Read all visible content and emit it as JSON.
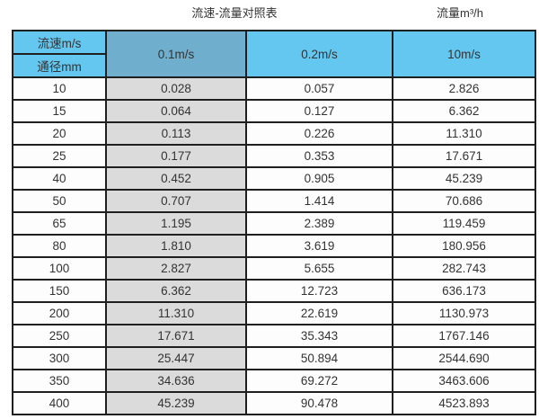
{
  "page": {
    "title_left": "流速-流量对照表",
    "title_right": "流量m³/h"
  },
  "table": {
    "corner": {
      "top": "流速m/s",
      "bottom": "通径mm"
    },
    "velocity_headers": [
      "0.1m/s",
      "0.2m/s",
      "10m/s"
    ],
    "rows": [
      {
        "dn": "10",
        "v01": "0.028",
        "v02": "0.057",
        "v10": "2.826"
      },
      {
        "dn": "15",
        "v01": "0.064",
        "v02": "0.127",
        "v10": "6.362"
      },
      {
        "dn": "20",
        "v01": "0.113",
        "v02": "0.226",
        "v10": "11.310"
      },
      {
        "dn": "25",
        "v01": "0.177",
        "v02": "0.353",
        "v10": "17.671"
      },
      {
        "dn": "40",
        "v01": "0.452",
        "v02": "0.905",
        "v10": "45.239"
      },
      {
        "dn": "50",
        "v01": "0.707",
        "v02": "1.414",
        "v10": "70.686"
      },
      {
        "dn": "65",
        "v01": "1.195",
        "v02": "2.389",
        "v10": "119.459"
      },
      {
        "dn": "80",
        "v01": "1.810",
        "v02": "3.619",
        "v10": "180.956"
      },
      {
        "dn": "100",
        "v01": "2.827",
        "v02": "5.655",
        "v10": "282.743"
      },
      {
        "dn": "150",
        "v01": "6.362",
        "v02": "12.723",
        "v10": "636.173"
      },
      {
        "dn": "200",
        "v01": "11.310",
        "v02": "22.619",
        "v10": "1130.973"
      },
      {
        "dn": "250",
        "v01": "17.671",
        "v02": "35.343",
        "v10": "1767.146"
      },
      {
        "dn": "300",
        "v01": "25.447",
        "v02": "50.894",
        "v10": "2544.690"
      },
      {
        "dn": "350",
        "v01": "34.636",
        "v02": "69.272",
        "v10": "3463.606"
      },
      {
        "dn": "400",
        "v01": "45.239",
        "v02": "90.478",
        "v10": "4523.893"
      }
    ]
  },
  "colors": {
    "header_blue": "#63c7f0",
    "header_steel_blue": "#6faecd",
    "shaded_gray": "#dbdbdb",
    "border_color": "#1f1f1f",
    "text_color": "#333333"
  },
  "chart_data": {
    "type": "table",
    "title": "流速-流量对照表",
    "value_unit_label": "流量m³/h",
    "row_header_label": "通径mm",
    "column_header_label": "流速m/s",
    "columns": [
      "0.1m/s",
      "0.2m/s",
      "10m/s"
    ],
    "diameters_mm": [
      10,
      15,
      20,
      25,
      40,
      50,
      65,
      80,
      100,
      150,
      200,
      250,
      300,
      350,
      400
    ],
    "series": [
      {
        "name": "0.1m/s",
        "values": [
          0.028,
          0.064,
          0.113,
          0.177,
          0.452,
          0.707,
          1.195,
          1.81,
          2.827,
          6.362,
          11.31,
          17.671,
          25.447,
          34.636,
          45.239
        ]
      },
      {
        "name": "0.2m/s",
        "values": [
          0.057,
          0.127,
          0.226,
          0.353,
          0.905,
          1.414,
          2.389,
          3.619,
          5.655,
          12.723,
          22.619,
          35.343,
          50.894,
          69.272,
          90.478
        ]
      },
      {
        "name": "10m/s",
        "values": [
          2.826,
          6.362,
          11.31,
          17.671,
          45.239,
          70.686,
          119.459,
          180.956,
          282.743,
          636.173,
          1130.973,
          1767.146,
          2544.69,
          3463.606,
          4523.893
        ]
      }
    ]
  }
}
